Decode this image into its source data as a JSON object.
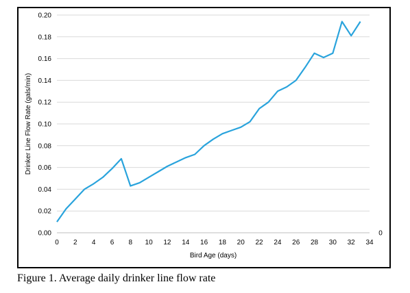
{
  "caption": "Figure 1.  Average daily drinker line flow rate",
  "chart_data": {
    "type": "line",
    "title": "",
    "xlabel": "Bird Age (days)",
    "ylabel": "Drinker Line Flow Rate (gals/min)",
    "xlim": [
      0,
      34
    ],
    "ylim": [
      0,
      0.2
    ],
    "x_ticks": [
      "0",
      "2",
      "4",
      "6",
      "8",
      "10",
      "12",
      "14",
      "16",
      "18",
      "20",
      "22",
      "24",
      "26",
      "28",
      "30",
      "32",
      "34"
    ],
    "y_ticks": [
      "0.00",
      "0.02",
      "0.04",
      "0.06",
      "0.08",
      "0.10",
      "0.12",
      "0.14",
      "0.16",
      "0.18",
      "0.20"
    ],
    "secondary_axis_label": "0",
    "grid": "horizontal",
    "legend": "none",
    "line_color": "#29a3dc",
    "grid_color": "#d9d9d9",
    "x": [
      0,
      1,
      2,
      3,
      4,
      5,
      6,
      7,
      8,
      9,
      10,
      11,
      12,
      13,
      14,
      15,
      16,
      17,
      18,
      19,
      20,
      21,
      22,
      23,
      24,
      25,
      26,
      27,
      28,
      29,
      30,
      31,
      32,
      33
    ],
    "series": [
      {
        "values": [
          0.01,
          0.022,
          0.031,
          0.04,
          0.045,
          0.051,
          0.059,
          0.068,
          0.043,
          0.046,
          0.051,
          0.056,
          0.061,
          0.065,
          0.069,
          0.072,
          0.08,
          0.086,
          0.091,
          0.094,
          0.097,
          0.102,
          0.114,
          0.12,
          0.13,
          0.134,
          0.14,
          0.152,
          0.165,
          0.161,
          0.165,
          0.194,
          0.181,
          0.194
        ]
      }
    ]
  }
}
